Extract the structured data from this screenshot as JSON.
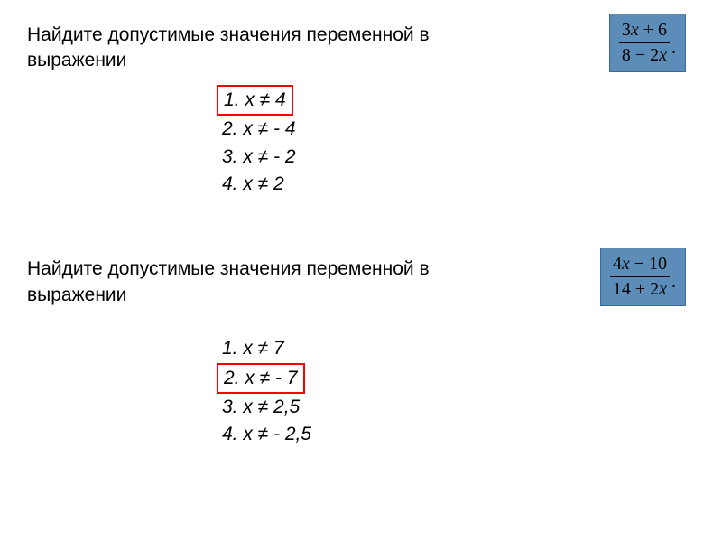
{
  "question1": {
    "text_line1": "Найдите допустимые значения переменной в",
    "text_line2": "выражении",
    "formula": {
      "numerator": "3x + 6",
      "denominator": "8 − 2x",
      "background_color": "#5b8db8",
      "border_color": "#3a6a96",
      "text_color": "#000000",
      "fontsize": 20
    },
    "options": [
      {
        "label": "1.  x ≠ 4",
        "highlighted": true
      },
      {
        "label": "2.  x ≠ - 4",
        "highlighted": false
      },
      {
        "label": "3.  x ≠ - 2",
        "highlighted": false
      },
      {
        "label": "4.  x ≠ 2",
        "highlighted": false
      }
    ],
    "highlight_color": "#ff0000"
  },
  "question2": {
    "text_line1": "Найдите допустимые значения переменной в",
    "text_line2": "выражении",
    "formula": {
      "numerator": "4x − 10",
      "denominator": "14 + 2x",
      "background_color": "#5b8db8",
      "border_color": "#3a6a96",
      "text_color": "#000000",
      "fontsize": 20
    },
    "options": [
      {
        "label": "1.  x ≠ 7",
        "highlighted": false
      },
      {
        "label": "2.  x ≠ - 7",
        "highlighted": true
      },
      {
        "label": "3.  x ≠ 2,5",
        "highlighted": false
      },
      {
        "label": "4.  x ≠ - 2,5",
        "highlighted": false
      }
    ],
    "highlight_color": "#ff0000"
  },
  "styling": {
    "body_background": "#ffffff",
    "question_fontsize": 21,
    "question_color": "#000000",
    "option_fontsize": 21,
    "option_fontstyle": "italic"
  }
}
